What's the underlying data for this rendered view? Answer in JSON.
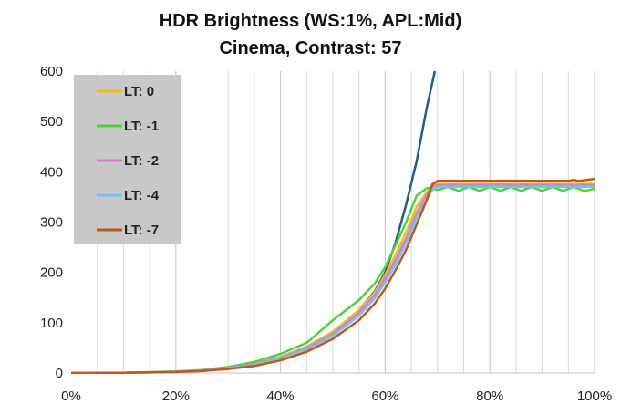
{
  "chart_data": {
    "type": "line",
    "title": "HDR Brightness (WS:1%, APL:Mid)",
    "subtitle": "Cinema, Contrast: 57",
    "xlabel": "",
    "ylabel": "",
    "xlim": [
      0,
      100
    ],
    "ylim": [
      0,
      600
    ],
    "x_ticks": [
      "0%",
      "20%",
      "40%",
      "60%",
      "80%",
      "100%"
    ],
    "x_tick_values": [
      0,
      20,
      40,
      60,
      80,
      100
    ],
    "y_ticks": [
      "0",
      "100",
      "200",
      "300",
      "400",
      "500",
      "600"
    ],
    "y_tick_values": [
      0,
      100,
      200,
      300,
      400,
      500,
      600
    ],
    "grid": "vertical",
    "legend_position": "top-left",
    "legend_background": "#c8c8c8",
    "reference_curve": {
      "color": "#1f5f7f",
      "x": [
        0,
        10,
        20,
        25,
        30,
        35,
        40,
        45,
        50,
        55,
        58,
        60,
        62,
        64,
        66,
        68,
        69.5
      ],
      "y": [
        0,
        0.5,
        2,
        5,
        10,
        18,
        32,
        52,
        82,
        125,
        162,
        200,
        260,
        335,
        420,
        530,
        600
      ]
    },
    "series": [
      {
        "name": "LT: 0",
        "color": "#f2c200",
        "x": [
          0,
          10,
          20,
          25,
          30,
          35,
          40,
          45,
          50,
          55,
          58,
          60,
          62,
          64,
          66,
          68,
          69,
          70,
          75,
          80,
          85,
          90,
          95,
          100
        ],
        "y": [
          0,
          0.5,
          2,
          5,
          10,
          18,
          32,
          52,
          82,
          125,
          160,
          195,
          235,
          280,
          330,
          360,
          372,
          376,
          376,
          376,
          376,
          376,
          376,
          376
        ]
      },
      {
        "name": "LT: -1",
        "color": "#4fd13f",
        "x": [
          0,
          10,
          20,
          25,
          30,
          35,
          40,
          45,
          50,
          55,
          58,
          60,
          62,
          64,
          66,
          68,
          70,
          72,
          74,
          76,
          78,
          80,
          82,
          84,
          86,
          88,
          90,
          92,
          94,
          96,
          98,
          100
        ],
        "y": [
          0,
          0.5,
          3,
          6,
          12,
          22,
          38,
          60,
          105,
          145,
          178,
          210,
          255,
          300,
          352,
          368,
          364,
          370,
          362,
          370,
          362,
          370,
          362,
          370,
          362,
          370,
          362,
          370,
          362,
          370,
          362,
          366
        ]
      },
      {
        "name": "LT: -2",
        "color": "#d17fd1",
        "x": [
          0,
          10,
          20,
          25,
          30,
          35,
          40,
          45,
          50,
          55,
          58,
          60,
          62,
          64,
          66,
          68,
          69,
          70,
          75,
          80,
          85,
          90,
          95,
          100
        ],
        "y": [
          0,
          0.5,
          2,
          5,
          10,
          17,
          30,
          50,
          78,
          120,
          155,
          188,
          225,
          268,
          318,
          355,
          370,
          374,
          374,
          374,
          374,
          374,
          374,
          374
        ]
      },
      {
        "name": "LT: -4",
        "color": "#6ec6f0",
        "x": [
          0,
          10,
          20,
          25,
          30,
          35,
          40,
          45,
          50,
          55,
          58,
          60,
          62,
          64,
          66,
          68,
          69,
          70,
          75,
          80,
          85,
          90,
          95,
          100
        ],
        "y": [
          0,
          0.5,
          2,
          4,
          9,
          16,
          28,
          47,
          74,
          114,
          148,
          180,
          216,
          258,
          308,
          348,
          364,
          370,
          370,
          370,
          370,
          370,
          370,
          370
        ]
      },
      {
        "name": "LT: -7",
        "color": "#c0561c",
        "x": [
          0,
          10,
          20,
          25,
          30,
          35,
          40,
          45,
          50,
          55,
          58,
          60,
          62,
          64,
          66,
          68,
          69,
          70,
          75,
          80,
          85,
          90,
          95,
          96,
          97,
          100
        ],
        "y": [
          0,
          0.5,
          2,
          4,
          8,
          14,
          25,
          42,
          68,
          105,
          138,
          168,
          205,
          245,
          295,
          345,
          375,
          382,
          382,
          382,
          382,
          382,
          382,
          384,
          382,
          386
        ]
      }
    ]
  }
}
